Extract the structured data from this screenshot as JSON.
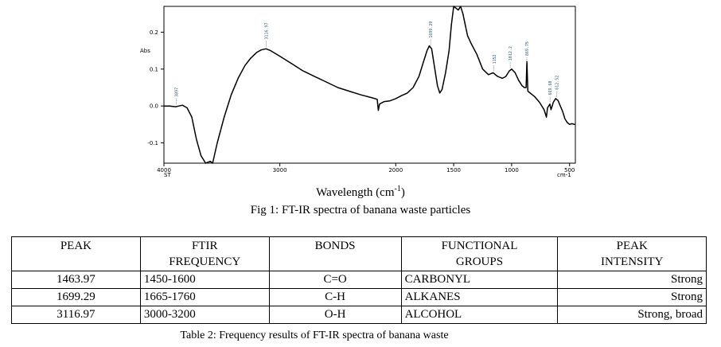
{
  "figure": {
    "caption": "Fig 1: FT-IR spectra of banana waste particles",
    "axis_label_prefix": "Wavelength (cm",
    "axis_label_exp": "-1",
    "axis_label_suffix": ")"
  },
  "chart_data": {
    "type": "line",
    "ylabel": "Abs",
    "xlim": [
      4000,
      450
    ],
    "ylim": [
      -0.155,
      0.27
    ],
    "xticks": [
      {
        "value": 4000,
        "label": "4000"
      },
      {
        "value": 3000,
        "label": "3000"
      },
      {
        "value": 2000,
        "label": "2000"
      },
      {
        "value": 1500,
        "label": "1500"
      },
      {
        "value": 1000,
        "label": "1000"
      },
      {
        "value": 500,
        "label": "500"
      }
    ],
    "x_left_sub": "ST",
    "x_unit": "cm-1",
    "yticks": [
      {
        "value": 0.2,
        "label": "0.2"
      },
      {
        "value": 0.1,
        "label": "0.1"
      },
      {
        "value": 0.0,
        "label": "0.0"
      },
      {
        "value": -0.1,
        "label": "-0.1"
      }
    ],
    "series": [
      {
        "points": [
          [
            4000,
            0.0
          ],
          [
            3950,
            0.0
          ],
          [
            3900,
            -0.002
          ],
          [
            3870,
            0.0
          ],
          [
            3840,
            0.002
          ],
          [
            3800,
            -0.005
          ],
          [
            3760,
            -0.03
          ],
          [
            3720,
            -0.09
          ],
          [
            3680,
            -0.135
          ],
          [
            3640,
            -0.155
          ],
          [
            3600,
            -0.15
          ],
          [
            3580,
            -0.155
          ],
          [
            3540,
            -0.1
          ],
          [
            3480,
            -0.03
          ],
          [
            3420,
            0.03
          ],
          [
            3360,
            0.075
          ],
          [
            3300,
            0.11
          ],
          [
            3250,
            0.13
          ],
          [
            3200,
            0.145
          ],
          [
            3160,
            0.152
          ],
          [
            3120,
            0.155
          ],
          [
            3080,
            0.15
          ],
          [
            3000,
            0.135
          ],
          [
            2900,
            0.115
          ],
          [
            2800,
            0.095
          ],
          [
            2700,
            0.08
          ],
          [
            2600,
            0.065
          ],
          [
            2500,
            0.05
          ],
          [
            2400,
            0.04
          ],
          [
            2300,
            0.03
          ],
          [
            2200,
            0.022
          ],
          [
            2160,
            0.018
          ],
          [
            2150,
            -0.012
          ],
          [
            2140,
            0.005
          ],
          [
            2100,
            0.012
          ],
          [
            2050,
            0.014
          ],
          [
            2000,
            0.02
          ],
          [
            1950,
            0.028
          ],
          [
            1900,
            0.035
          ],
          [
            1850,
            0.05
          ],
          [
            1800,
            0.08
          ],
          [
            1760,
            0.12
          ],
          [
            1730,
            0.15
          ],
          [
            1710,
            0.163
          ],
          [
            1690,
            0.155
          ],
          [
            1670,
            0.115
          ],
          [
            1640,
            0.055
          ],
          [
            1620,
            0.035
          ],
          [
            1600,
            0.045
          ],
          [
            1570,
            0.09
          ],
          [
            1540,
            0.15
          ],
          [
            1520,
            0.22
          ],
          [
            1500,
            0.27
          ],
          [
            1480,
            0.265
          ],
          [
            1460,
            0.26
          ],
          [
            1440,
            0.275
          ],
          [
            1420,
            0.25
          ],
          [
            1400,
            0.22
          ],
          [
            1380,
            0.19
          ],
          [
            1350,
            0.17
          ],
          [
            1300,
            0.14
          ],
          [
            1250,
            0.1
          ],
          [
            1200,
            0.085
          ],
          [
            1160,
            0.09
          ],
          [
            1140,
            0.085
          ],
          [
            1120,
            0.08
          ],
          [
            1080,
            0.075
          ],
          [
            1050,
            0.08
          ],
          [
            1020,
            0.095
          ],
          [
            1000,
            0.1
          ],
          [
            970,
            0.09
          ],
          [
            940,
            0.07
          ],
          [
            910,
            0.055
          ],
          [
            890,
            0.05
          ],
          [
            875,
            0.05
          ],
          [
            868,
            0.12
          ],
          [
            860,
            0.04
          ],
          [
            840,
            0.035
          ],
          [
            800,
            0.025
          ],
          [
            760,
            0.01
          ],
          [
            720,
            -0.01
          ],
          [
            700,
            -0.03
          ],
          [
            690,
            -0.005
          ],
          [
            670,
            0.005
          ],
          [
            660,
            -0.01
          ],
          [
            640,
            0.01
          ],
          [
            620,
            0.02
          ],
          [
            600,
            0.015
          ],
          [
            580,
            0.0
          ],
          [
            560,
            -0.015
          ],
          [
            540,
            -0.035
          ],
          [
            520,
            -0.045
          ],
          [
            500,
            -0.05
          ],
          [
            480,
            -0.048
          ],
          [
            460,
            -0.05
          ],
          [
            450,
            -0.05
          ]
        ]
      }
    ],
    "peak_labels": [
      {
        "x": 3895,
        "text": "3897"
      },
      {
        "x": 3117,
        "text": "3116.97"
      },
      {
        "x": 1699,
        "text": "1699.29"
      },
      {
        "x": 1152,
        "text": "1152"
      },
      {
        "x": 1012,
        "text": "1012.2"
      },
      {
        "x": 869,
        "text": "869.75"
      },
      {
        "x": 669,
        "text": "669.60"
      },
      {
        "x": 612,
        "text": "612.52"
      }
    ]
  },
  "table": {
    "caption": "Table 2: Frequency results of FT-IR spectra of banana waste",
    "headers": [
      {
        "line1": "PEAK",
        "line2": ""
      },
      {
        "line1": "FTIR",
        "line2": "FREQUENCY"
      },
      {
        "line1": "BONDS",
        "line2": ""
      },
      {
        "line1": "FUNCTIONAL",
        "line2": "GROUPS"
      },
      {
        "line1": "PEAK",
        "line2": "INTENSITY"
      }
    ],
    "rows": [
      [
        "1463.97",
        "1450-1600",
        "C=O",
        "CARBONYL",
        "Strong"
      ],
      [
        "1699.29",
        "1665-1760",
        "C-H",
        "ALKANES",
        "Strong"
      ],
      [
        "3116.97",
        "3000-3200",
        "O-H",
        "ALCOHOL",
        "Strong, broad"
      ]
    ]
  }
}
